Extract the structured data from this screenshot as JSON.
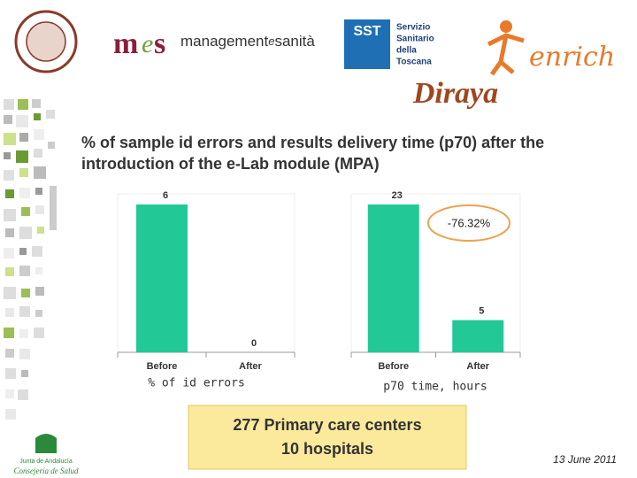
{
  "mes": {
    "word1": "management",
    "word2": "e",
    "word3": "sanità"
  },
  "sst": {
    "mark": "SST",
    "lines": [
      "Servizio",
      "Sanitario",
      "della",
      "Toscana"
    ]
  },
  "enrich": "enrich",
  "brand": "Diraya",
  "title_lines": [
    "% of sample id errors and results delivery time (p70) after the",
    "introduction of the e-Lab module (MPA)"
  ],
  "chart_data": [
    {
      "type": "bar",
      "categories": [
        "Before",
        "After"
      ],
      "values": [
        6,
        0
      ],
      "x_label": "% of id errors",
      "color": "#22c896"
    },
    {
      "type": "bar",
      "categories": [
        "Before",
        "After"
      ],
      "values": [
        23,
        5
      ],
      "x_label": "p70 time, hours",
      "annotation": "-76.32%",
      "color": "#22c896"
    }
  ],
  "summary": [
    "277 Primary care centers",
    "10 hospitals"
  ],
  "footer": {
    "org": [
      "Junta de Andalucía",
      "Consejería de Salud"
    ],
    "date": "13 June 2011"
  }
}
